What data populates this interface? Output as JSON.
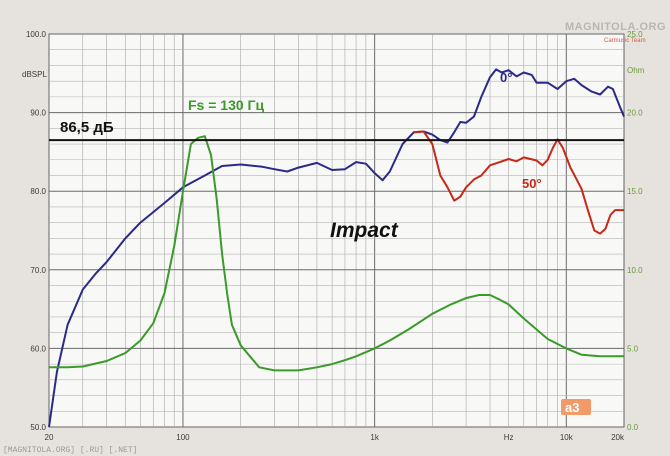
{
  "chart_data": {
    "type": "line",
    "title": "Impact",
    "ylabel": "dBSPL",
    "y2label": "Ohm",
    "xlabel_unit": "Hz",
    "xscale": "log",
    "xlim": [
      20,
      20000
    ],
    "ylim": [
      50,
      100
    ],
    "y2lim": [
      0,
      25
    ],
    "x_ticks": [
      {
        "value": 20,
        "label": "20"
      },
      {
        "value": 100,
        "label": "100"
      },
      {
        "value": 1000,
        "label": "1k"
      },
      {
        "value": 5000,
        "label": "Hz"
      },
      {
        "value": 10000,
        "label": "10k"
      },
      {
        "value": 20000,
        "label": "20k"
      }
    ],
    "y_ticks": [
      {
        "value": 100,
        "label": "100.0"
      },
      {
        "value": 90,
        "label": "90.0"
      },
      {
        "value": 80,
        "label": "80.0"
      },
      {
        "value": 70,
        "label": "70.0"
      },
      {
        "value": 60,
        "label": "60.0"
      },
      {
        "value": 50,
        "label": "50.0"
      }
    ],
    "y2_ticks": [
      {
        "value": 25,
        "label": "25.0"
      },
      {
        "value": 20,
        "label": "20.0"
      },
      {
        "value": 15,
        "label": "15.0"
      },
      {
        "value": 10,
        "label": "10.0"
      },
      {
        "value": 5,
        "label": "5.0"
      },
      {
        "value": 0,
        "label": "0.0"
      }
    ],
    "grid": true,
    "reference_line": {
      "value": 86.5,
      "label": "86,5 дБ",
      "color": "#111111"
    },
    "series": [
      {
        "name": "0°",
        "color": "#2a2a88",
        "axis": "left",
        "points": [
          [
            20,
            50
          ],
          [
            22,
            57
          ],
          [
            25,
            63
          ],
          [
            30,
            67.5
          ],
          [
            35,
            69.5
          ],
          [
            40,
            71
          ],
          [
            50,
            74
          ],
          [
            60,
            76
          ],
          [
            80,
            78.5
          ],
          [
            100,
            80.5
          ],
          [
            130,
            82
          ],
          [
            160,
            83.2
          ],
          [
            200,
            83.4
          ],
          [
            260,
            83.1
          ],
          [
            300,
            82.8
          ],
          [
            350,
            82.5
          ],
          [
            400,
            83
          ],
          [
            500,
            83.6
          ],
          [
            600,
            82.7
          ],
          [
            700,
            82.8
          ],
          [
            800,
            83.7
          ],
          [
            900,
            83.5
          ],
          [
            1000,
            82.3
          ],
          [
            1100,
            81.4
          ],
          [
            1200,
            82.5
          ],
          [
            1400,
            86
          ],
          [
            1600,
            87.5
          ],
          [
            1800,
            87.6
          ],
          [
            2000,
            87.2
          ],
          [
            2200,
            86.5
          ],
          [
            2400,
            86.2
          ],
          [
            2600,
            87.5
          ],
          [
            2800,
            88.8
          ],
          [
            3000,
            88.7
          ],
          [
            3300,
            89.5
          ],
          [
            3600,
            92
          ],
          [
            4000,
            94.5
          ],
          [
            4300,
            95.5
          ],
          [
            4600,
            95.1
          ],
          [
            5000,
            95.4
          ],
          [
            5500,
            94.6
          ],
          [
            6000,
            95.1
          ],
          [
            6600,
            94.8
          ],
          [
            7000,
            93.8
          ],
          [
            8000,
            93.8
          ],
          [
            9000,
            93
          ],
          [
            10000,
            94
          ],
          [
            11000,
            94.3
          ],
          [
            12000,
            93.5
          ],
          [
            13500,
            92.7
          ],
          [
            15000,
            92.3
          ],
          [
            16500,
            93.3
          ],
          [
            17500,
            93
          ],
          [
            19000,
            90.8
          ],
          [
            20000,
            89.5
          ]
        ]
      },
      {
        "name": "50°",
        "color": "#c82818",
        "axis": "left",
        "points": [
          [
            1600,
            87.5
          ],
          [
            1800,
            87.6
          ],
          [
            2000,
            86
          ],
          [
            2200,
            82
          ],
          [
            2400,
            80.5
          ],
          [
            2600,
            78.8
          ],
          [
            2800,
            79.3
          ],
          [
            3000,
            80.5
          ],
          [
            3300,
            81.5
          ],
          [
            3600,
            82
          ],
          [
            4000,
            83.3
          ],
          [
            4500,
            83.7
          ],
          [
            5000,
            84.1
          ],
          [
            5500,
            83.8
          ],
          [
            6000,
            84.3
          ],
          [
            7000,
            83.9
          ],
          [
            7500,
            83.3
          ],
          [
            8000,
            84
          ],
          [
            8500,
            85.5
          ],
          [
            9000,
            86.6
          ],
          [
            9600,
            85.5
          ],
          [
            10500,
            83
          ],
          [
            11000,
            82.1
          ],
          [
            12000,
            80.3
          ],
          [
            13000,
            77.5
          ],
          [
            14000,
            75
          ],
          [
            15000,
            74.6
          ],
          [
            16000,
            75.2
          ],
          [
            17000,
            77
          ],
          [
            18000,
            77.6
          ],
          [
            20000,
            77.6
          ]
        ]
      },
      {
        "name": "Fs = 130 Гц",
        "color": "#3a9a2a",
        "axis": "right",
        "points": [
          [
            20,
            3.8
          ],
          [
            25,
            3.8
          ],
          [
            30,
            3.85
          ],
          [
            40,
            4.2
          ],
          [
            50,
            4.7
          ],
          [
            60,
            5.5
          ],
          [
            70,
            6.6
          ],
          [
            80,
            8.5
          ],
          [
            90,
            11.5
          ],
          [
            100,
            15
          ],
          [
            110,
            18
          ],
          [
            120,
            18.4
          ],
          [
            130,
            18.5
          ],
          [
            140,
            17.3
          ],
          [
            150,
            14.5
          ],
          [
            160,
            11
          ],
          [
            170,
            8.5
          ],
          [
            180,
            6.5
          ],
          [
            200,
            5.2
          ],
          [
            250,
            3.8
          ],
          [
            300,
            3.6
          ],
          [
            400,
            3.6
          ],
          [
            500,
            3.8
          ],
          [
            600,
            4
          ],
          [
            700,
            4.25
          ],
          [
            800,
            4.5
          ],
          [
            1000,
            5
          ],
          [
            1200,
            5.5
          ],
          [
            1500,
            6.2
          ],
          [
            2000,
            7.2
          ],
          [
            2500,
            7.8
          ],
          [
            3000,
            8.2
          ],
          [
            3500,
            8.4
          ],
          [
            4000,
            8.4
          ],
          [
            4500,
            8.1
          ],
          [
            5000,
            7.8
          ],
          [
            6000,
            6.9
          ],
          [
            7000,
            6.2
          ],
          [
            8000,
            5.6
          ],
          [
            10000,
            5
          ],
          [
            12000,
            4.6
          ],
          [
            15000,
            4.5
          ],
          [
            20000,
            4.5
          ]
        ]
      }
    ],
    "annotations": [
      {
        "text": "Fs = 130 Гц",
        "color": "#3a9a2a"
      },
      {
        "text": "0°",
        "color": "#2a2a88"
      },
      {
        "text": "50°",
        "color": "#c82818"
      },
      {
        "text": "Impact",
        "color": "#111111"
      },
      {
        "text": "86,5 дБ",
        "color": "#111111"
      }
    ]
  },
  "watermark": {
    "text": "MAGNITOLA.ORG",
    "subtext": "Carmusic Team",
    "logo": "a3"
  },
  "footer": {
    "text": "[MAGNITOLA.ORG] [.RU] [.NET]"
  },
  "colors": {
    "background": "#eceae6",
    "plot_bg": "#f8f8f6",
    "grid": "#9a9a9a"
  }
}
